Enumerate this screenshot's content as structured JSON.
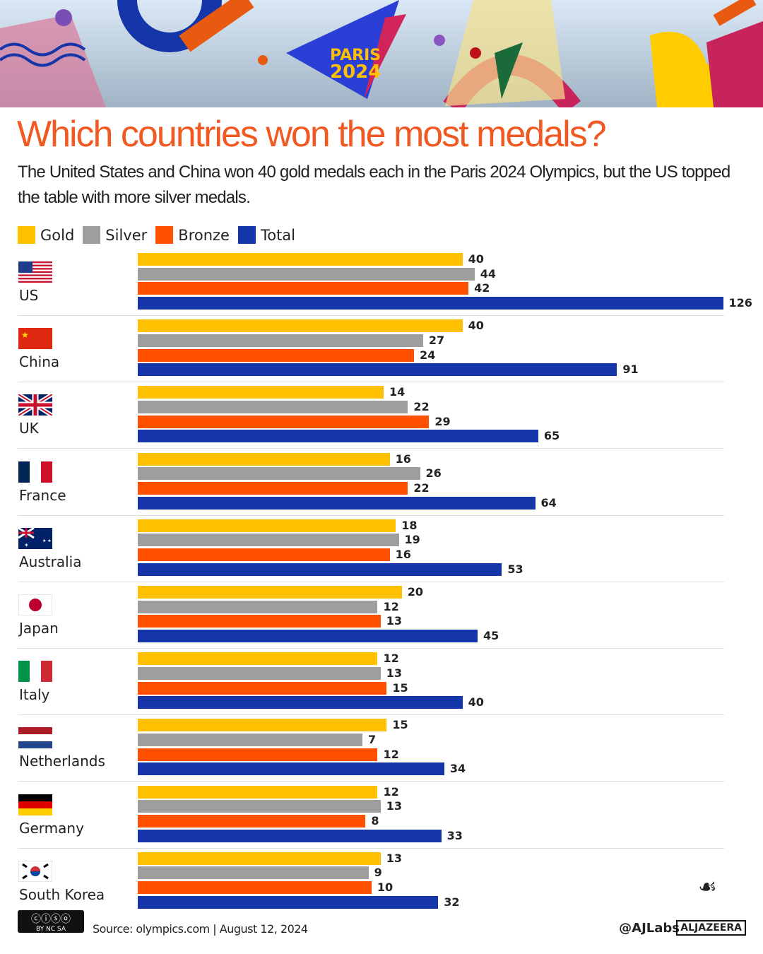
{
  "title": "Which countries won the most medals?",
  "subtitle": "The United States and China won 40 gold medals each in the Paris 2024 Olympics, but the US topped the table with more silver medals.",
  "banner_text": "PARIS 2024",
  "colors": {
    "Gold": "#ffc000",
    "Silver": "#9e9e9e",
    "Bronze": "#ff5000",
    "Total": "#1436a8",
    "title": "#f05a22"
  },
  "chart_data": {
    "type": "bar",
    "orientation": "horizontal",
    "legend_position": "top-left",
    "grid": false,
    "series_names": [
      "Gold",
      "Silver",
      "Bronze",
      "Total"
    ],
    "categories": [
      "US",
      "China",
      "UK",
      "France",
      "Australia",
      "Japan",
      "Italy",
      "Netherlands",
      "Germany",
      "South Korea"
    ],
    "series": [
      {
        "name": "Gold",
        "values": [
          40,
          40,
          14,
          16,
          18,
          20,
          12,
          15,
          12,
          13
        ]
      },
      {
        "name": "Silver",
        "values": [
          44,
          27,
          22,
          26,
          19,
          12,
          13,
          7,
          13,
          9
        ]
      },
      {
        "name": "Bronze",
        "values": [
          42,
          24,
          29,
          22,
          16,
          13,
          15,
          12,
          8,
          10
        ]
      },
      {
        "name": "Total",
        "values": [
          126,
          91,
          65,
          64,
          53,
          45,
          40,
          34,
          33,
          32
        ]
      }
    ]
  },
  "footer": {
    "license": "BY NC SA",
    "source": "Source: olympics.com  | August 12, 2024",
    "handle": "@AJLabs",
    "brand": "ALJAZEERA"
  }
}
